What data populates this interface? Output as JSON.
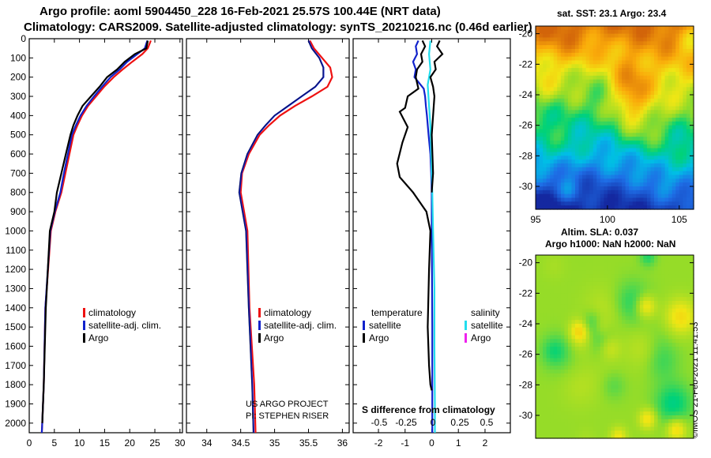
{
  "header": {
    "line1": "Argo profile: aoml 5904450_228 16-Feb-2021 25.57S 100.44E (NRT data)",
    "line2": "Climatology: CARS2009. Satellite-adjusted climatology: synTS_20210216.nc (0.46d earlier)"
  },
  "colors": {
    "climatology": "#ee1111",
    "satellite": "#1122cc",
    "argo": "#000000",
    "satellite_sal": "#22ddee",
    "argo_sal": "#ee22ee"
  },
  "depth_axis": {
    "ylim": [
      2050,
      0
    ],
    "ticks": [
      0,
      100,
      200,
      300,
      400,
      500,
      600,
      700,
      800,
      900,
      1000,
      1100,
      1200,
      1300,
      1400,
      1500,
      1600,
      1700,
      1800,
      1900,
      2000
    ]
  },
  "chart_data": [
    {
      "type": "line",
      "name": "temperature",
      "xlim": [
        0,
        30.5
      ],
      "xticks": [
        0,
        5,
        10,
        15,
        20,
        25,
        30
      ],
      "legend": [
        "climatology",
        "satellite-adj. clim.",
        "Argo"
      ],
      "series": [
        {
          "name": "climatology",
          "color_key": "climatology",
          "x": [
            24.2,
            23.6,
            22.5,
            20.5,
            18.6,
            16.8,
            14.9,
            13.3,
            11.7,
            10.5,
            9.6,
            8.8,
            8.0,
            7.2,
            6.4,
            5.2,
            4.3,
            3.2,
            2.9,
            2.6,
            2.5
          ],
          "y": [
            10,
            50,
            80,
            120,
            160,
            200,
            250,
            300,
            350,
            400,
            450,
            500,
            600,
            700,
            800,
            900,
            1000,
            1400,
            1800,
            2000,
            2050
          ]
        },
        {
          "name": "satellite-adj. clim.",
          "color_key": "satellite",
          "x": [
            23.5,
            23.0,
            21.5,
            19.5,
            18.0,
            16.2,
            14.5,
            12.9,
            11.4,
            10.2,
            9.3,
            8.5,
            7.7,
            6.9,
            6.2,
            5.1,
            4.2,
            3.2,
            2.9,
            2.6,
            2.5
          ],
          "y": [
            10,
            50,
            80,
            120,
            160,
            200,
            250,
            300,
            350,
            400,
            450,
            500,
            600,
            700,
            800,
            900,
            1000,
            1400,
            1800,
            2000,
            2050
          ]
        },
        {
          "name": "Argo",
          "color_key": "argo",
          "x": [
            23.6,
            23.3,
            21.0,
            19.0,
            17.5,
            15.5,
            14.0,
            12.3,
            10.6,
            9.6,
            8.8,
            8.2,
            7.3,
            6.4,
            5.5,
            5.0,
            4.1,
            3.3,
            2.9,
            2.6
          ],
          "y": [
            10,
            50,
            80,
            120,
            160,
            200,
            250,
            300,
            350,
            400,
            450,
            500,
            600,
            700,
            800,
            900,
            1000,
            1400,
            1800,
            2000
          ]
        }
      ]
    },
    {
      "type": "line",
      "name": "salinity",
      "xlim": [
        33.7,
        36.1
      ],
      "xticks": [
        34,
        34.5,
        35,
        35.5,
        36
      ],
      "xtick_labels": [
        "34",
        "34.5",
        "35",
        "35.5",
        "36"
      ],
      "legend": [
        "climatology",
        "satellite-adj. clim.",
        "Argo"
      ],
      "credit": [
        "US ARGO PROJECT",
        "PI: STEPHEN RISER"
      ],
      "series": [
        {
          "name": "climatology",
          "color_key": "climatology",
          "x": [
            35.52,
            35.58,
            35.7,
            35.82,
            35.85,
            35.78,
            35.55,
            35.3,
            35.08,
            34.92,
            34.78,
            34.62,
            34.52,
            34.5,
            34.55,
            34.6,
            34.63,
            34.7,
            34.72
          ],
          "y": [
            10,
            50,
            100,
            150,
            200,
            250,
            300,
            350,
            400,
            450,
            500,
            600,
            700,
            800,
            900,
            1000,
            1400,
            1800,
            2050
          ]
        },
        {
          "name": "satellite-adj. clim.",
          "color_key": "satellite",
          "x": [
            35.5,
            35.55,
            35.66,
            35.72,
            35.72,
            35.6,
            35.4,
            35.2,
            35.0,
            34.87,
            34.75,
            34.6,
            34.51,
            34.48,
            34.53,
            34.58,
            34.62,
            34.67,
            34.69
          ],
          "y": [
            10,
            50,
            100,
            150,
            200,
            250,
            300,
            350,
            400,
            450,
            500,
            600,
            700,
            800,
            900,
            1000,
            1400,
            1800,
            2050
          ]
        }
      ]
    },
    {
      "type": "line",
      "name": "S difference from climatology",
      "xlim": [
        -2.95,
        2.95
      ],
      "xticks": [
        -2,
        -1,
        0,
        1,
        2
      ],
      "xtick_labels": [
        "-2",
        "-1",
        "0",
        "1",
        "2"
      ],
      "second_xticks": [
        -0.5,
        -0.25,
        0,
        0.25,
        0.5
      ],
      "second_xtick_labels": [
        "-0.5",
        "-0.25",
        "0",
        "0.25",
        "0.5"
      ],
      "xlabel": "S difference from climatology",
      "legend_groups": {
        "temperature": [
          "satellite",
          "Argo"
        ],
        "salinity": [
          "satellite",
          "Argo"
        ]
      },
      "series": [
        {
          "name": "temperature satellite",
          "color_key": "satellite",
          "x": [
            -0.5,
            -0.6,
            -0.55,
            -0.7,
            -0.6,
            -0.65,
            -0.3,
            -0.25,
            -0.22,
            -0.18,
            -0.12,
            -0.05,
            -0.02,
            0.0,
            0.0,
            0.02,
            0.02
          ],
          "y": [
            10,
            40,
            80,
            120,
            160,
            200,
            260,
            300,
            350,
            400,
            500,
            600,
            700,
            800,
            1000,
            1500,
            2050
          ]
        },
        {
          "name": "temperature Argo",
          "color_key": "argo",
          "x": [
            -0.35,
            -0.25,
            -0.4,
            -0.35,
            -0.55,
            -0.6,
            -0.5,
            -0.9,
            -1.0,
            -1.2,
            -0.9,
            -1.1,
            -1.3,
            -1.2,
            -0.7,
            -0.2,
            -0.05,
            -0.1,
            -0.15,
            -0.1,
            -0.05,
            0.0
          ],
          "y": [
            10,
            40,
            80,
            120,
            160,
            200,
            260,
            300,
            360,
            380,
            460,
            540,
            650,
            720,
            800,
            900,
            1000,
            1200,
            1500,
            1700,
            1800,
            1830
          ]
        },
        {
          "name": "salinity satellite",
          "color_key": "satellite_sal",
          "x": [
            -0.05,
            -0.1,
            -0.05,
            -0.15,
            -0.1,
            -0.05,
            -0.02,
            0.02,
            0.05,
            0.1,
            0.1,
            0.12,
            0.12
          ],
          "y": [
            10,
            80,
            160,
            240,
            350,
            450,
            600,
            800,
            1000,
            1300,
            1600,
            1900,
            2050
          ]
        },
        {
          "name": "salinity Argo",
          "color_key": "argo",
          "x": [
            0.3,
            0.2,
            0.4,
            0.1,
            0.15,
            -0.05,
            0.05,
            0.1,
            0.05,
            0.0,
            0.05,
            0.0
          ],
          "y": [
            10,
            40,
            80,
            120,
            160,
            200,
            250,
            300,
            400,
            500,
            700,
            800
          ]
        }
      ]
    },
    {
      "type": "heatmap",
      "name": "sst",
      "title": "sat. SST: 23.1 Argo: 23.4",
      "lon_range": [
        95,
        106
      ],
      "lat_range": [
        -31.5,
        -19.5
      ],
      "xticks": [
        95,
        100,
        105
      ],
      "yticks": [
        -20,
        -22,
        -24,
        -26,
        -28,
        -30
      ]
    },
    {
      "type": "heatmap",
      "name": "ssla",
      "title1": "Altim. SLA: 0.037",
      "title2": "Argo h1000: NaN h2000: NaN",
      "lat_range": [
        -31.5,
        -19.5
      ],
      "yticks": [
        -20,
        -22,
        -24,
        -26,
        -28,
        -30
      ]
    }
  ],
  "footer": {
    "imos": "©IMOS 21-Feb-2021 11:41:53"
  }
}
